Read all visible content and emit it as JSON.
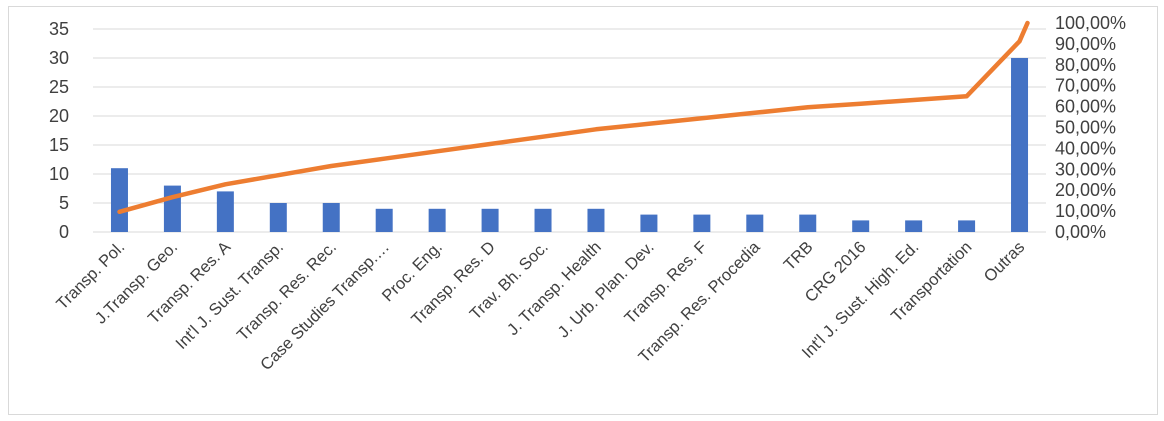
{
  "chart_data": {
    "type": "bar",
    "title": "",
    "xlabel": "",
    "ylabel": "",
    "y2label": "",
    "grid": true,
    "legend": "none",
    "categories": [
      "Transp. Pol.",
      "J.Transp. Geo.",
      "Transp. Res. A",
      "Int'l J. Sust. Transp.",
      "Transp. Res. Rec.",
      "Case Studies Transp.…",
      "Proc. Eng.",
      "Transp. Res. D",
      "Trav. Bh. Soc.",
      "J. Transp. Health",
      "J. Urb. Plan. Dev.",
      "Transp. Res. F",
      "Transp. Res. Procedia",
      "TRB",
      "CRG 2016",
      "Int'l J. Sust. High. Ed.",
      "Transportation",
      "Outras"
    ],
    "series": [
      {
        "type": "bar",
        "axis": "primary",
        "color": "#4472C4",
        "values": [
          11,
          8,
          7,
          5,
          5,
          4,
          4,
          4,
          4,
          4,
          3,
          3,
          3,
          3,
          2,
          2,
          2,
          30
        ]
      },
      {
        "type": "line",
        "axis": "secondary",
        "color": "#ED7D31",
        "values": [
          0.0965,
          0.1667,
          0.2281,
          0.2719,
          0.3158,
          0.3509,
          0.386,
          0.4211,
          0.4561,
          0.4912,
          0.5175,
          0.5439,
          0.5702,
          0.5965,
          0.614,
          0.6316,
          0.6491,
          0.9123
        ]
      }
    ],
    "ylim": [
      0,
      35
    ],
    "yticks": [
      "0",
      "5",
      "10",
      "15",
      "20",
      "25",
      "30",
      "35"
    ],
    "y2lim": [
      0,
      1
    ],
    "y2ticks": [
      "0,00%",
      "10,00%",
      "20,00%",
      "30,00%",
      "40,00%",
      "50,00%",
      "60,00%",
      "70,00%",
      "80,00%",
      "90,00%",
      "100,00%"
    ]
  }
}
